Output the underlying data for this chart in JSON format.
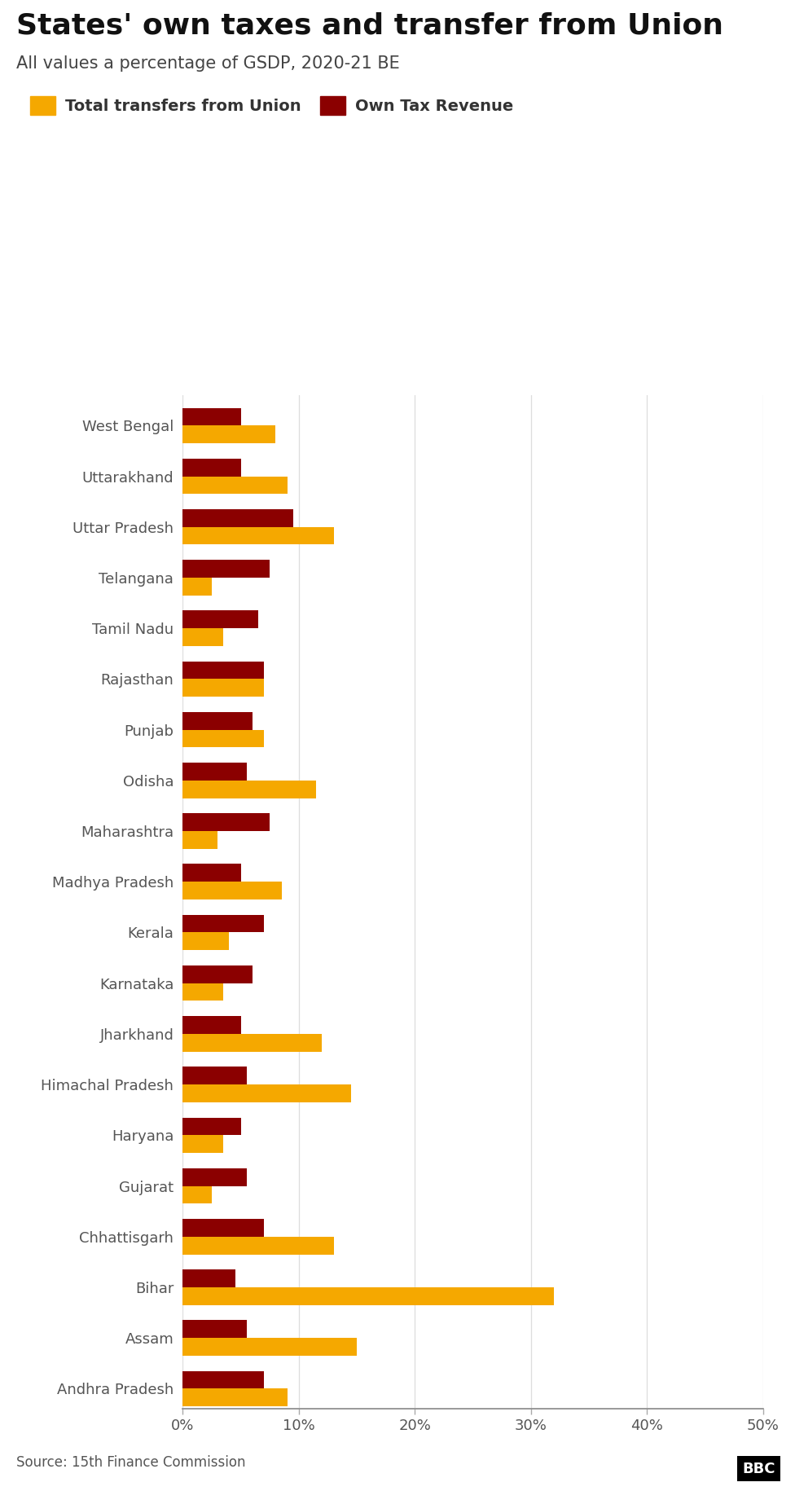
{
  "title": "States' own taxes and transfer from Union",
  "subtitle": "All values a percentage of GSDP, 2020-21 BE",
  "source": "Source: 15th Finance Commission",
  "legend_labels": [
    "Total transfers from Union",
    "Own Tax Revenue"
  ],
  "states": [
    "West Bengal",
    "Uttarakhand",
    "Uttar Pradesh",
    "Telangana",
    "Tamil Nadu",
    "Rajasthan",
    "Punjab",
    "Odisha",
    "Maharashtra",
    "Madhya Pradesh",
    "Kerala",
    "Karnataka",
    "Jharkhand",
    "Himachal Pradesh",
    "Haryana",
    "Gujarat",
    "Chhattisgarh",
    "Bihar",
    "Assam",
    "Andhra Pradesh"
  ],
  "transfers": [
    8.0,
    9.0,
    13.0,
    2.5,
    3.5,
    7.0,
    7.0,
    11.5,
    3.0,
    8.5,
    4.0,
    3.5,
    12.0,
    14.5,
    3.5,
    2.5,
    13.0,
    32.0,
    15.0,
    9.0
  ],
  "own_tax": [
    5.0,
    5.0,
    9.5,
    7.5,
    6.5,
    7.0,
    6.0,
    5.5,
    7.5,
    5.0,
    7.0,
    6.0,
    5.0,
    5.5,
    5.0,
    5.5,
    7.0,
    4.5,
    5.5,
    7.0
  ],
  "transfer_color": "#F5A800",
  "own_tax_color": "#8B0000",
  "xlim": [
    0,
    50
  ],
  "xtick_values": [
    0,
    10,
    20,
    30,
    40,
    50
  ],
  "xtick_labels": [
    "0%",
    "10%",
    "20%",
    "30%",
    "40%",
    "50%"
  ],
  "bar_height": 0.35,
  "background_color": "#ffffff",
  "title_fontsize": 26,
  "subtitle_fontsize": 15,
  "label_fontsize": 13,
  "tick_fontsize": 13,
  "source_fontsize": 12
}
